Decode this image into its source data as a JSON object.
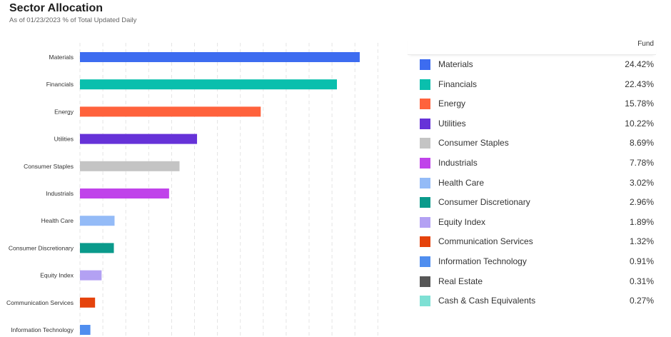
{
  "header": {
    "title": "Sector Allocation",
    "subtitle": "As of 01/23/2023 % of Total Updated Daily"
  },
  "legend": {
    "column_label": "Fund"
  },
  "chart_data": {
    "type": "bar",
    "orientation": "horizontal",
    "title": "Sector Allocation",
    "subtitle": "As of 01/23/2023 % of Total Updated Daily",
    "unit": "%",
    "xlim": [
      0,
      30
    ],
    "grid": true,
    "legend_placement": "right",
    "categories": [
      "Materials",
      "Financials",
      "Energy",
      "Utilities",
      "Consumer Staples",
      "Industrials",
      "Health Care",
      "Consumer Discretionary",
      "Equity Index",
      "Communication Services",
      "Information Technology",
      "Real Estate",
      "Cash & Cash Equivalents"
    ],
    "values": [
      24.42,
      22.43,
      15.78,
      10.22,
      8.69,
      7.78,
      3.02,
      2.96,
      1.89,
      1.32,
      0.91,
      0.31,
      0.27
    ],
    "value_labels": [
      "24.42%",
      "22.43%",
      "15.78%",
      "10.22%",
      "8.69%",
      "7.78%",
      "3.02%",
      "2.96%",
      "1.89%",
      "1.32%",
      "0.91%",
      "0.31%",
      "0.27%"
    ],
    "colors": [
      "#3d6cf0",
      "#0abfad",
      "#ff623c",
      "#6632d8",
      "#c4c4c4",
      "#c043ea",
      "#94bbf7",
      "#0a9a8b",
      "#b3a1f3",
      "#e5430c",
      "#508eef",
      "#575757",
      "#7ee0d4"
    ]
  }
}
